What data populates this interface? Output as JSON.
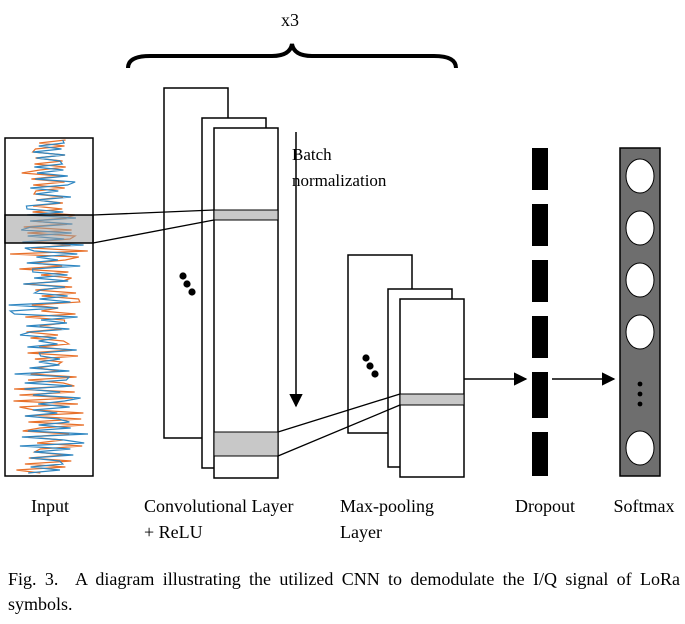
{
  "diagram": {
    "repeat_label": "x3",
    "batch_norm_label_line1": "Batch",
    "batch_norm_label_line2": "normalization",
    "labels": {
      "input": "Input",
      "conv_line1": "Convolutional Layer",
      "conv_line2": "+ ReLU",
      "pool_line1": "Max-pooling",
      "pool_line2": "Layer",
      "dropout": "Dropout",
      "softmax": "Softmax"
    },
    "signal_colors": {
      "in_phase": "#2e86c1",
      "quadrature": "#e8712b"
    },
    "highlight_color": "#c8c8c8",
    "softmax_color": "#6e6e6e"
  },
  "caption": {
    "prefix": "Fig. 3.",
    "text": "A diagram illustrating the utilized CNN to demodulate the I/Q signal of LoRa symbols."
  }
}
